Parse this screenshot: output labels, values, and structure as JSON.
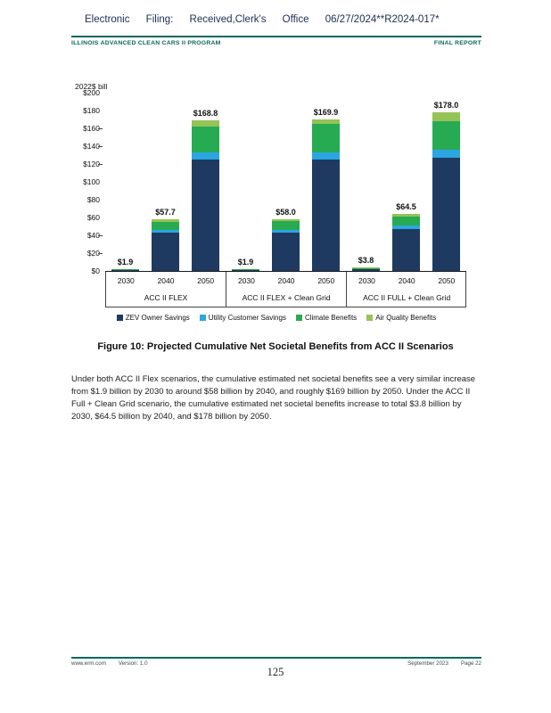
{
  "header": {
    "filing_line": "Electronic Filing: Received,Clerk's Office 06/27/2024**R2024-017*",
    "program_title": "ILLINOIS ADVANCED CLEAN CARS II PROGRAM",
    "report_label": "FINAL REPORT"
  },
  "colors": {
    "accent_teal": "#06685c",
    "zev_owner_savings": "#1f3a60",
    "utility_customer_savings": "#2ba6e0",
    "climate_benefits": "#27ab52",
    "air_quality_benefits": "#95c356"
  },
  "chart_data": {
    "type": "bar",
    "stacked": true,
    "axis_title": "2022$ bill",
    "xlabel": "",
    "ylabel": "2022$ bill",
    "ylim": [
      0,
      200
    ],
    "grid": false,
    "legend_position": "bottom",
    "yticks": [
      {
        "label": "$200",
        "value": 200,
        "dash": false
      },
      {
        "label": "$180",
        "value": 180,
        "dash": false
      },
      {
        "label": "$160",
        "value": 160,
        "dash": true
      },
      {
        "label": "$140",
        "value": 140,
        "dash": true
      },
      {
        "label": "$120",
        "value": 120,
        "dash": true
      },
      {
        "label": "$100",
        "value": 100,
        "dash": false
      },
      {
        "label": "$80",
        "value": 80,
        "dash": false
      },
      {
        "label": "$60",
        "value": 60,
        "dash": false
      },
      {
        "label": "$40",
        "value": 40,
        "dash": true
      },
      {
        "label": "$20",
        "value": 20,
        "dash": true
      },
      {
        "label": "$0",
        "value": 0,
        "dash": false
      }
    ],
    "series_names": [
      "ZEV Owner Savings",
      "Utility Customer Savings",
      "Climate Benefits",
      "Air Quality Benefits"
    ],
    "series_colors": [
      "#1f3a60",
      "#2ba6e0",
      "#27ab52",
      "#95c356"
    ],
    "groups": [
      {
        "label": "ACC II FLEX",
        "bars": [
          {
            "year": "2030",
            "total": 1.9,
            "total_label": "$1.9",
            "segments": [
              1.0,
              0.1,
              0.6,
              0.2
            ]
          },
          {
            "year": "2040",
            "total": 57.7,
            "total_label": "$57.7",
            "segments": [
              43.0,
              3.0,
              9.5,
              2.2
            ]
          },
          {
            "year": "2050",
            "total": 168.8,
            "total_label": "$168.8",
            "segments": [
              125.0,
              8.0,
              28.8,
              7.0
            ]
          }
        ]
      },
      {
        "label": "ACC II FLEX + Clean Grid",
        "bars": [
          {
            "year": "2030",
            "total": 1.9,
            "total_label": "$1.9",
            "segments": [
              1.0,
              0.1,
              0.6,
              0.2
            ]
          },
          {
            "year": "2040",
            "total": 58.0,
            "total_label": "$58.0",
            "segments": [
              43.0,
              3.2,
              9.5,
              2.3
            ]
          },
          {
            "year": "2050",
            "total": 169.9,
            "total_label": "$169.9",
            "segments": [
              125.0,
              8.0,
              31.9,
              5.0
            ]
          }
        ]
      },
      {
        "label": "ACC II FULL + Clean Grid",
        "bars": [
          {
            "year": "2030",
            "total": 3.8,
            "total_label": "$3.8",
            "segments": [
              2.2,
              0.2,
              1.0,
              0.4
            ]
          },
          {
            "year": "2040",
            "total": 64.5,
            "total_label": "$64.5",
            "segments": [
              47.0,
              4.0,
              10.5,
              3.0
            ]
          },
          {
            "year": "2050",
            "total": 178.0,
            "total_label": "$178.0",
            "segments": [
              127.5,
              9.0,
              31.5,
              10.0
            ]
          }
        ]
      }
    ]
  },
  "figure": {
    "caption": "Figure 10: Projected Cumulative Net Societal Benefits from ACC II Scenarios"
  },
  "body": {
    "paragraph": "Under both ACC II Flex scenarios, the cumulative estimated net societal benefits see a very similar increase from $1.9 billion by 2030 to around $58 billion by 2040, and roughly $169 billion by 2050. Under the ACC II Full + Clean Grid scenario, the cumulative estimated net societal benefits increase to total $3.8 billion by 2030, $64.5 billion by 2040, and $178 billion by 2050."
  },
  "footer": {
    "site": "www.erm.com",
    "version": "Version: 1.0",
    "date": "September 2023",
    "page_label": "Page 22",
    "page_number": "125"
  }
}
